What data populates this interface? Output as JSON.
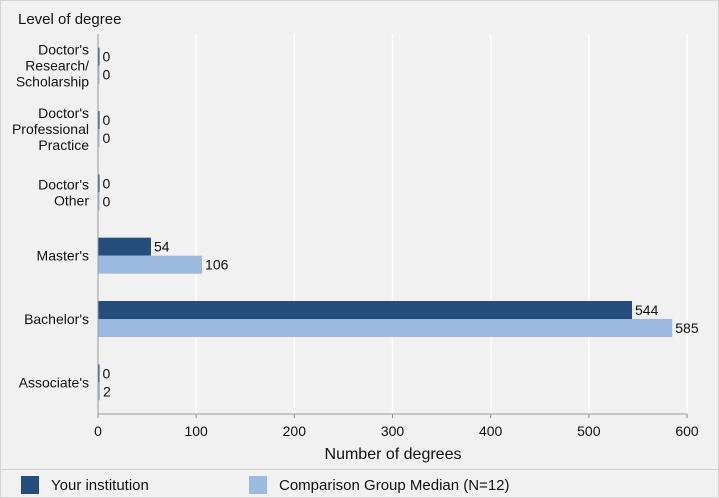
{
  "chart_data": {
    "type": "bar",
    "orientation": "horizontal",
    "title": "Level of degree",
    "xlabel": "Number of degrees",
    "ylabel": "",
    "xlim": [
      0,
      600
    ],
    "xticks": [
      0,
      100,
      200,
      300,
      400,
      500,
      600
    ],
    "grid": true,
    "legend_position": "bottom",
    "categories": [
      [
        "Doctor's",
        "Research/",
        "Scholarship"
      ],
      [
        "Doctor's",
        "Professional",
        "Practice"
      ],
      [
        "Doctor's",
        "Other"
      ],
      [
        "Master's"
      ],
      [
        "Bachelor's"
      ],
      [
        "Associate's"
      ]
    ],
    "series": [
      {
        "name": "Your institution",
        "color": "#254e7c",
        "values": [
          0,
          0,
          0,
          54,
          544,
          0
        ]
      },
      {
        "name": "Comparison Group Median (N=12)",
        "color": "#9cb9e0",
        "values": [
          0,
          0,
          0,
          106,
          585,
          2
        ]
      }
    ]
  }
}
